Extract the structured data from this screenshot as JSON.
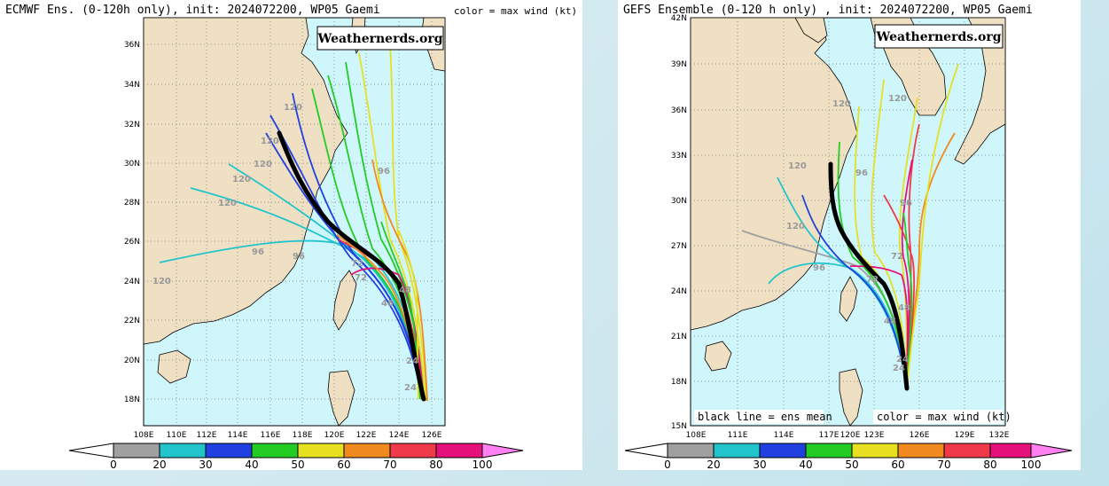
{
  "panels": [
    {
      "title": "ECMWF Ens. (0-120h only), init: 2024072200, WP05 Gaemi",
      "color_note": "color = max wind (kt)",
      "watermark": "Weathernerds.org",
      "lat_labels": [
        "36N",
        "34N",
        "32N",
        "30N",
        "28N",
        "26N",
        "24N",
        "22N",
        "20N",
        "18N"
      ],
      "lon_labels": [
        "108E",
        "110E",
        "112E",
        "114E",
        "116E",
        "118E",
        "120E",
        "122E",
        "124E",
        "126E"
      ],
      "hour_labels": [
        "120",
        "120",
        "120",
        "120",
        "120",
        "120",
        "96",
        "96",
        "96",
        "72",
        "72",
        "48",
        "48",
        "24",
        "24"
      ],
      "colorbar_ticks": [
        "0",
        "20",
        "30",
        "40",
        "50",
        "60",
        "70",
        "80",
        "100"
      ]
    },
    {
      "title": "GEFS Ensemble (0-120 h only) , init: 2024072200, WP05 Gaemi",
      "watermark": "Weathernerds.org",
      "mean_note": "black line = ens mean",
      "color_note": "color = max wind (kt)",
      "lat_labels": [
        "42N",
        "39N",
        "36N",
        "33N",
        "30N",
        "27N",
        "24N",
        "21N",
        "18N",
        "15N"
      ],
      "lon_labels": [
        "108E",
        "111E",
        "114E",
        "117E",
        "120E",
        "123E",
        "126E",
        "129E",
        "132E"
      ],
      "hour_labels": [
        "120",
        "120",
        "120",
        "120",
        "96",
        "96",
        "96",
        "72",
        "72",
        "48",
        "48",
        "24",
        "24"
      ],
      "colorbar_ticks": [
        "0",
        "20",
        "30",
        "40",
        "50",
        "60",
        "70",
        "80",
        "100"
      ]
    }
  ],
  "colorbar_colors": [
    "#ffffff",
    "#a0a0a0",
    "#22c4cc",
    "#2040e0",
    "#22cc22",
    "#e6e020",
    "#f08a20",
    "#f03a4a",
    "#e6107a",
    "#ff80f0"
  ],
  "map_colors": {
    "land": "#efe0c4",
    "ocean": "#cff6fb",
    "grid": "#777777",
    "mean_track": "#000000"
  }
}
